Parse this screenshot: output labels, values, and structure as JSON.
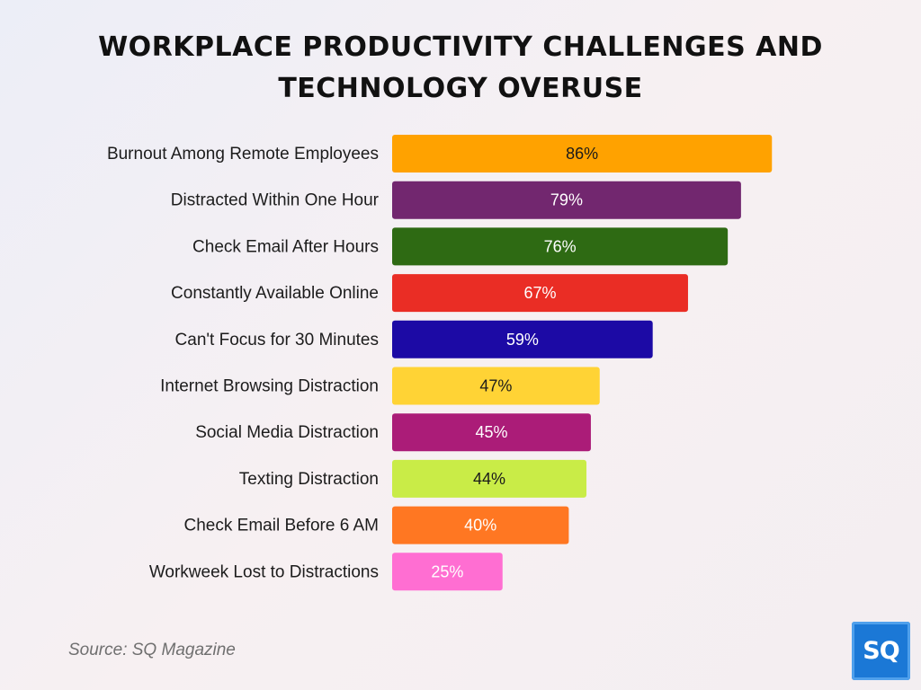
{
  "chart_data": {
    "type": "bar",
    "orientation": "horizontal",
    "title_lines": [
      "WORKPLACE PRODUCTIVITY CHALLENGES AND",
      "TECHNOLOGY OVERUSE"
    ],
    "categories": [
      "Burnout Among Remote Employees",
      "Distracted Within One Hour",
      "Check Email After Hours",
      "Constantly Available Online",
      "Can't Focus for 30 Minutes",
      "Internet Browsing Distraction",
      "Social Media Distraction",
      "Texting Distraction",
      "Check Email Before 6 AM",
      "Workweek Lost to Distractions"
    ],
    "values": [
      86,
      79,
      76,
      67,
      59,
      47,
      45,
      44,
      40,
      25
    ],
    "value_labels": [
      "86%",
      "79%",
      "76%",
      "67%",
      "59%",
      "47%",
      "45%",
      "44%",
      "40%",
      "25%"
    ],
    "unit": "%",
    "bar_colors": [
      "#ffa200",
      "#72276f",
      "#2e6a13",
      "#ea2d25",
      "#1c0aa5",
      "#ffd335",
      "#ab1c78",
      "#c9ec47",
      "#ff7722",
      "#ff6ed2"
    ],
    "label_colors": [
      "#1a1a1a",
      "#ffffff",
      "#ffffff",
      "#ffffff",
      "#ffffff",
      "#1a1a1a",
      "#ffffff",
      "#1a1a1a",
      "#ffffff",
      "#ffffff"
    ],
    "xlim": [
      0,
      100
    ],
    "grid": false,
    "legend": "none"
  },
  "footer": {
    "source": "Source: SQ Magazine",
    "logo_text": "SQ"
  }
}
